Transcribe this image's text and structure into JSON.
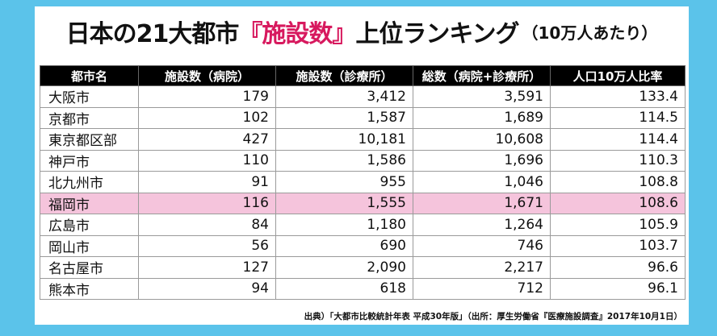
{
  "title": {
    "prefix": "日本の21大都市",
    "highlight": "『施設数』",
    "suffix": "上位ランキング",
    "sub": "（10万人あたり）"
  },
  "table": {
    "headers": [
      "都市名",
      "施設数（病院）",
      "施設数（診療所）",
      "総数（病院+診療所）",
      "人口10万人比率"
    ],
    "rows": [
      [
        "大阪市",
        "179",
        "3,412",
        "3,591",
        "133.4"
      ],
      [
        "京都市",
        "102",
        "1,587",
        "1,689",
        "114.5"
      ],
      [
        "東京都区部",
        "427",
        "10,181",
        "10,608",
        "114.4"
      ],
      [
        "神戸市",
        "110",
        "1,586",
        "1,696",
        "110.3"
      ],
      [
        "北九州市",
        "91",
        "955",
        "1,046",
        "108.8"
      ],
      [
        "福岡市",
        "116",
        "1,555",
        "1,671",
        "108.6"
      ],
      [
        "広島市",
        "84",
        "1,180",
        "1,264",
        "105.9"
      ],
      [
        "岡山市",
        "56",
        "690",
        "746",
        "103.7"
      ],
      [
        "名古屋市",
        "127",
        "2,090",
        "2,217",
        "96.6"
      ],
      [
        "熊本市",
        "94",
        "618",
        "712",
        "96.1"
      ]
    ],
    "highlight_row": 5
  },
  "source": "出典）「大都市比較統計年表 平成30年版」（出所：厚生労働省『医療施設調査』2017年10月1日）",
  "colors": {
    "background": "#5BC3EA",
    "title_accent": "#D7195E",
    "highlight_row": "#F5C4DC",
    "header_bg": "#000000"
  }
}
